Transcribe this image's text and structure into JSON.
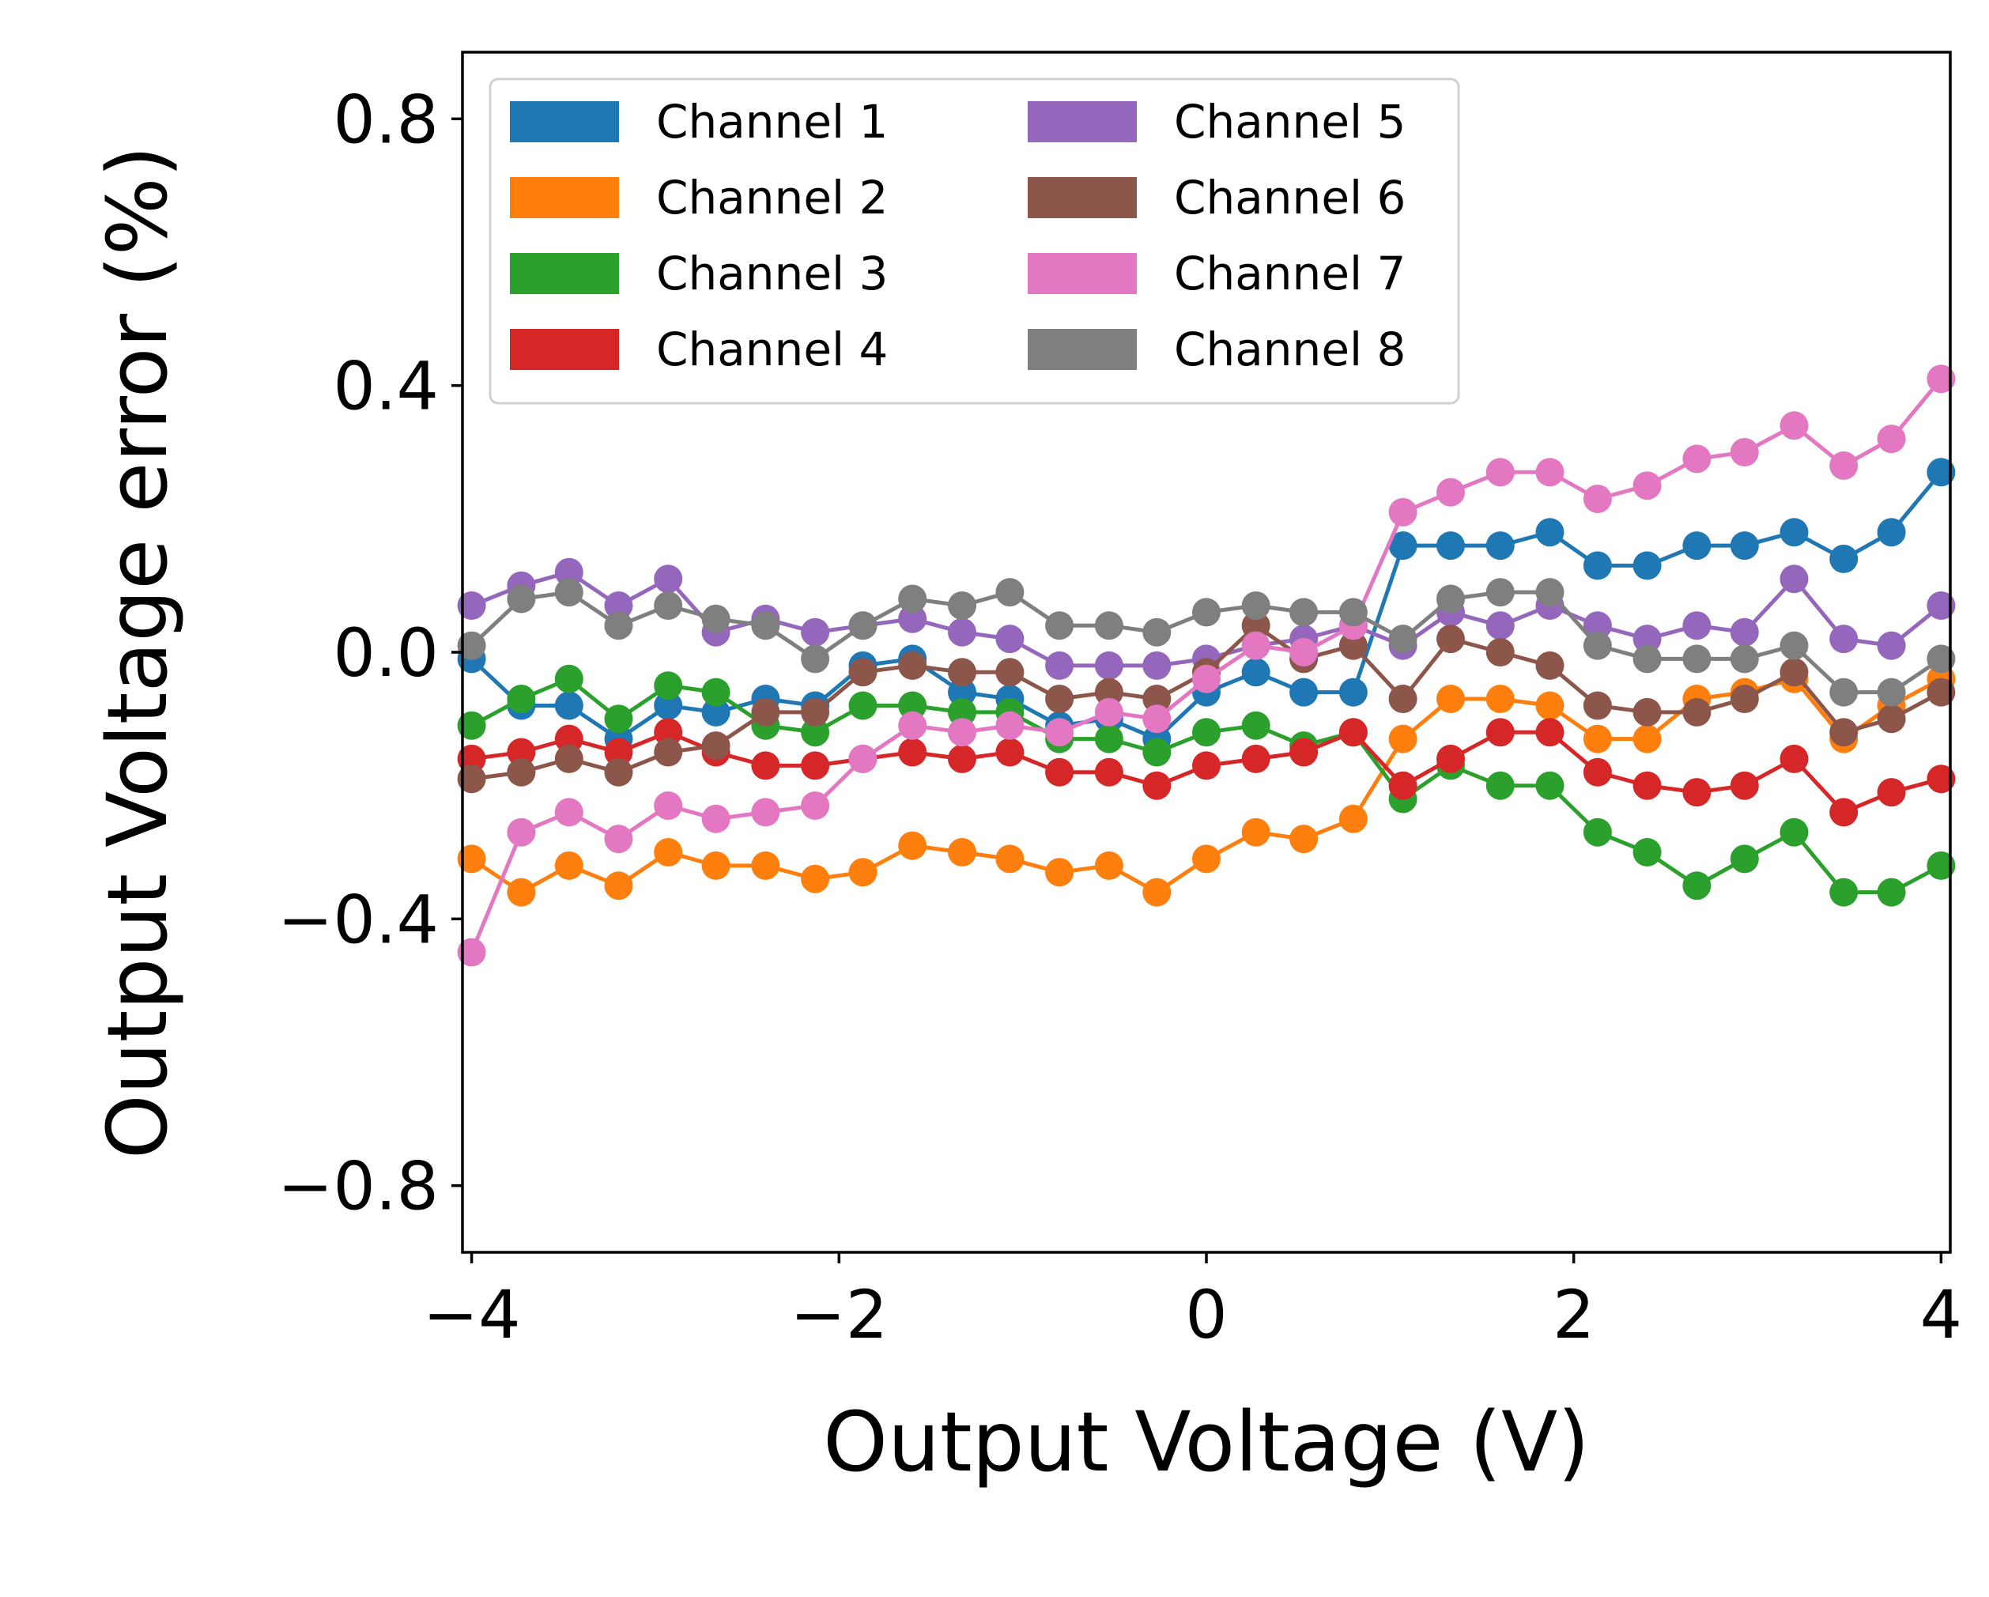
{
  "chart_data": {
    "type": "line",
    "title": "",
    "xlabel": "Output Voltage (V)",
    "ylabel": "Output Voltage error (%)",
    "xlim": [
      -4.05,
      4.05
    ],
    "ylim": [
      -0.9,
      0.9
    ],
    "xticks": [
      -4,
      -2,
      0,
      2,
      4
    ],
    "xtick_labels": [
      "−4",
      "−2",
      "0",
      "2",
      "4"
    ],
    "yticks": [
      -0.8,
      -0.4,
      0.0,
      0.4,
      0.8
    ],
    "ytick_labels": [
      "−0.8",
      "−0.4",
      "0.0",
      "0.4",
      "0.8"
    ],
    "grid": false,
    "legend_position": "top-left",
    "x": [
      -4.0,
      -3.73,
      -3.47,
      -3.2,
      -2.93,
      -2.67,
      -2.4,
      -2.13,
      -1.87,
      -1.6,
      -1.33,
      -1.07,
      -0.8,
      -0.53,
      -0.27,
      0.0,
      0.27,
      0.53,
      0.8,
      1.07,
      1.33,
      1.6,
      1.87,
      2.13,
      2.4,
      2.67,
      2.93,
      3.2,
      3.47,
      3.73,
      4.0
    ],
    "series": [
      {
        "name": "Channel 1",
        "color": "#1f77b4",
        "values": [
          -0.01,
          -0.08,
          -0.08,
          -0.13,
          -0.08,
          -0.09,
          -0.07,
          -0.08,
          -0.02,
          -0.01,
          -0.06,
          -0.07,
          -0.11,
          -0.1,
          -0.13,
          -0.06,
          -0.03,
          -0.06,
          -0.06,
          0.16,
          0.16,
          0.16,
          0.18,
          0.13,
          0.13,
          0.16,
          0.16,
          0.18,
          0.14,
          0.18,
          0.27
        ]
      },
      {
        "name": "Channel 2",
        "color": "#ff7f0e",
        "values": [
          -0.31,
          -0.36,
          -0.32,
          -0.35,
          -0.3,
          -0.32,
          -0.32,
          -0.34,
          -0.33,
          -0.29,
          -0.3,
          -0.31,
          -0.33,
          -0.32,
          -0.36,
          -0.31,
          -0.27,
          -0.28,
          -0.25,
          -0.13,
          -0.07,
          -0.07,
          -0.08,
          -0.13,
          -0.13,
          -0.07,
          -0.06,
          -0.04,
          -0.13,
          -0.08,
          -0.04
        ]
      },
      {
        "name": "Channel 3",
        "color": "#2ca02c",
        "values": [
          -0.11,
          -0.07,
          -0.04,
          -0.1,
          -0.05,
          -0.06,
          -0.11,
          -0.12,
          -0.08,
          -0.08,
          -0.09,
          -0.09,
          -0.13,
          -0.13,
          -0.15,
          -0.12,
          -0.11,
          -0.14,
          -0.12,
          -0.22,
          -0.17,
          -0.2,
          -0.2,
          -0.27,
          -0.3,
          -0.35,
          -0.31,
          -0.27,
          -0.36,
          -0.36,
          -0.32
        ]
      },
      {
        "name": "Channel 4",
        "color": "#d62728",
        "values": [
          -0.16,
          -0.15,
          -0.13,
          -0.15,
          -0.12,
          -0.15,
          -0.17,
          -0.17,
          -0.16,
          -0.15,
          -0.16,
          -0.15,
          -0.18,
          -0.18,
          -0.2,
          -0.17,
          -0.16,
          -0.15,
          -0.12,
          -0.2,
          -0.16,
          -0.12,
          -0.12,
          -0.18,
          -0.2,
          -0.21,
          -0.2,
          -0.16,
          -0.24,
          -0.21,
          -0.19
        ]
      },
      {
        "name": "Channel 5",
        "color": "#9467bd",
        "values": [
          0.07,
          0.1,
          0.12,
          0.07,
          0.11,
          0.03,
          0.05,
          0.03,
          0.04,
          0.05,
          0.03,
          0.02,
          -0.02,
          -0.02,
          -0.02,
          -0.01,
          0.01,
          0.02,
          0.04,
          0.01,
          0.06,
          0.04,
          0.07,
          0.04,
          0.02,
          0.04,
          0.03,
          0.11,
          0.02,
          0.01,
          0.07
        ]
      },
      {
        "name": "Channel 6",
        "color": "#8c564b",
        "values": [
          -0.19,
          -0.18,
          -0.16,
          -0.18,
          -0.15,
          -0.14,
          -0.09,
          -0.09,
          -0.03,
          -0.02,
          -0.03,
          -0.03,
          -0.07,
          -0.06,
          -0.07,
          -0.03,
          0.04,
          -0.01,
          0.01,
          -0.07,
          0.02,
          0.0,
          -0.02,
          -0.08,
          -0.09,
          -0.09,
          -0.07,
          -0.03,
          -0.12,
          -0.1,
          -0.06
        ]
      },
      {
        "name": "Channel 7",
        "color": "#e377c2",
        "values": [
          -0.45,
          -0.27,
          -0.24,
          -0.28,
          -0.23,
          -0.25,
          -0.24,
          -0.23,
          -0.16,
          -0.11,
          -0.12,
          -0.11,
          -0.12,
          -0.09,
          -0.1,
          -0.04,
          0.01,
          0.0,
          0.04,
          0.21,
          0.24,
          0.27,
          0.27,
          0.23,
          0.25,
          0.29,
          0.3,
          0.34,
          0.28,
          0.32,
          0.41
        ]
      },
      {
        "name": "Channel 8",
        "color": "#7f7f7f",
        "values": [
          0.01,
          0.08,
          0.09,
          0.04,
          0.07,
          0.05,
          0.04,
          -0.01,
          0.04,
          0.08,
          0.07,
          0.09,
          0.04,
          0.04,
          0.03,
          0.06,
          0.07,
          0.06,
          0.06,
          0.02,
          0.08,
          0.09,
          0.09,
          0.01,
          -0.01,
          -0.01,
          -0.01,
          0.01,
          -0.06,
          -0.06,
          -0.01
        ]
      }
    ]
  }
}
